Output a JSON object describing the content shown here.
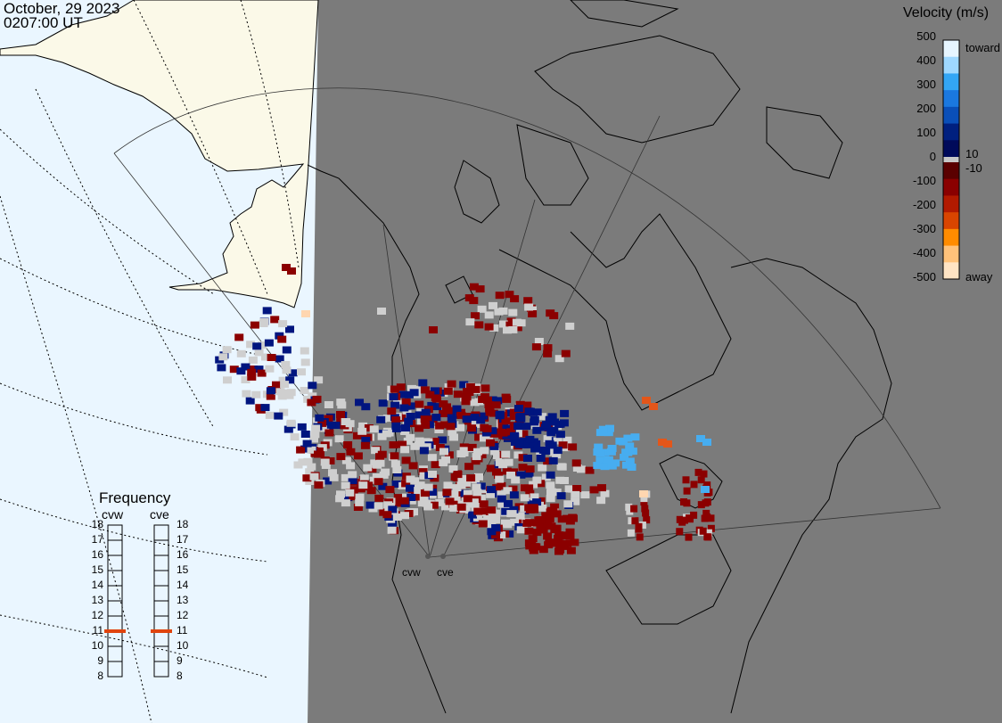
{
  "header": {
    "date": "October, 29 2023",
    "time": "0207:00 UT"
  },
  "legend": {
    "title": "Velocity (m/s)",
    "ticks": [
      "500",
      "400",
      "300",
      "200",
      "100",
      "0",
      "-100",
      "-200",
      "-300",
      "-400",
      "-500"
    ],
    "inner_ticks": [
      "10",
      "-10"
    ],
    "toward_label": "toward",
    "away_label": "away",
    "colors": {
      "toward": [
        "#e6f5ff",
        "#9fd8ff",
        "#33a6f5",
        "#1a78e0",
        "#0a4fb8",
        "#00207f",
        "#000a5a"
      ],
      "zero": "#c8c8c8",
      "away": [
        "#5a0000",
        "#8a0000",
        "#b21a00",
        "#d94500",
        "#ff8c00",
        "#ffc27a",
        "#ffe4c4"
      ]
    }
  },
  "frequency": {
    "title": "Frequency",
    "radars": [
      {
        "name": "cvw",
        "value": 11
      },
      {
        "name": "cve",
        "value": 11
      }
    ],
    "scale": [
      "18",
      "17",
      "16",
      "15",
      "14",
      "13",
      "12",
      "11",
      "10",
      "9",
      "8"
    ],
    "marker_color": "#e0440e"
  },
  "map": {
    "ocean_color": "#eaf6ff",
    "land_daylight_color": "#fbf9e8",
    "night_color": "#7b7b7b",
    "radar_labels": [
      "cvw",
      "cve"
    ],
    "cell_colors": {
      "ground_scatter": "#cfcfcf",
      "dark_red": "#8b0000",
      "dark_blue": "#00157f",
      "light_blue": "#47adf0",
      "orange": "#e3561a",
      "peach": "#ffd6b0"
    }
  }
}
